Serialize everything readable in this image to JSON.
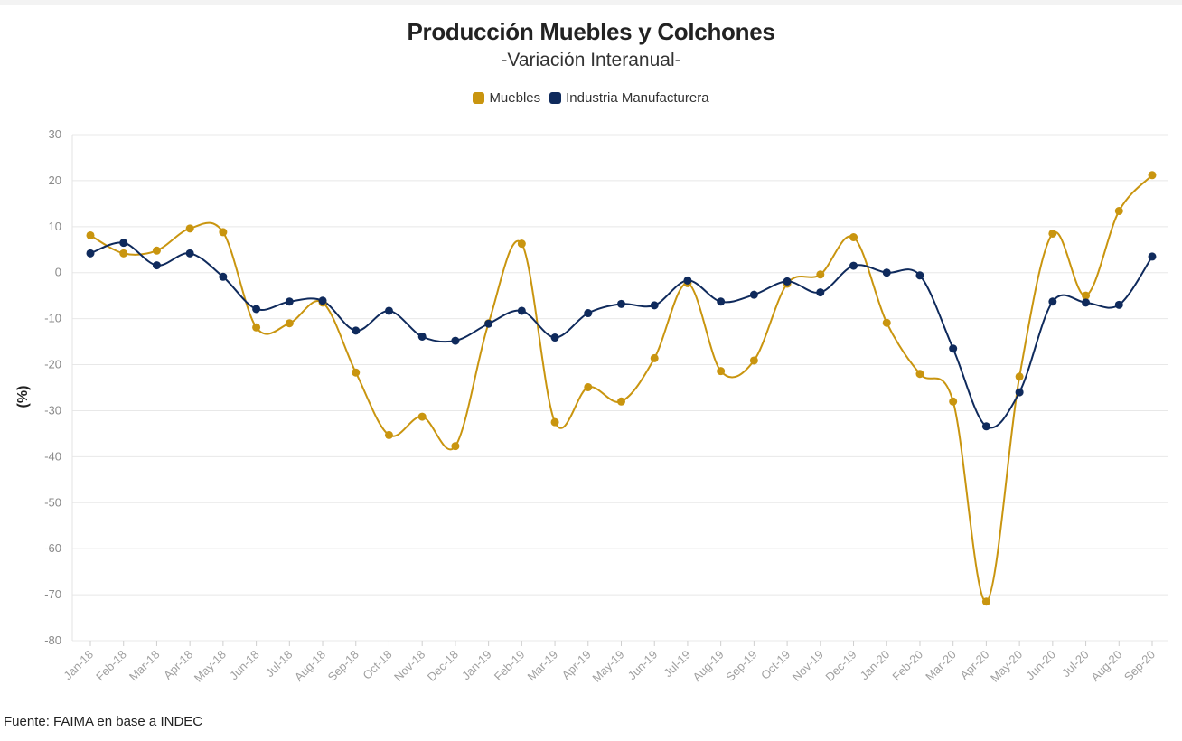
{
  "title": "Producción Muebles y Colchones",
  "subtitle": "-Variación Interanual-",
  "source": "Fuente: FAIMA en base a INDEC",
  "chart_data": {
    "type": "line",
    "title": "Producción Muebles y Colchones",
    "subtitle": "-Variación Interanual-",
    "ylabel": "(%)",
    "xlabel": "",
    "ylim": [
      -80,
      30
    ],
    "yticks": [
      30,
      20,
      10,
      0,
      -10,
      -20,
      -30,
      -40,
      -50,
      -60,
      -70,
      -80
    ],
    "grid": true,
    "legend_position": "top-center",
    "categories": [
      "Jan-18",
      "Feb-18",
      "Mar-18",
      "Apr-18",
      "May-18",
      "Jun-18",
      "Jul-18",
      "Aug-18",
      "Sep-18",
      "Oct-18",
      "Nov-18",
      "Dec-18",
      "Jan-19",
      "Feb-19",
      "Mar-19",
      "Apr-19",
      "May-19",
      "Jun-19",
      "Jul-19",
      "Aug-19",
      "Sep-19",
      "Oct-19",
      "Nov-19",
      "Dec-19",
      "Jan-20",
      "Feb-20",
      "Mar-20",
      "Apr-20",
      "May-20",
      "Jun-20",
      "Jul-20",
      "Aug-20",
      "Sep-20"
    ],
    "series": [
      {
        "name": "Muebles",
        "color": "#c9950f",
        "values": [
          8.1,
          4.2,
          4.8,
          9.6,
          8.8,
          -11.9,
          -11.0,
          -6.5,
          -21.7,
          -35.3,
          -31.3,
          -37.7,
          -11.0,
          6.3,
          -32.5,
          -24.9,
          -28.0,
          -18.6,
          -2.3,
          -21.4,
          -19.1,
          -2.4,
          -0.4,
          7.7,
          -10.9,
          -22.0,
          -28.0,
          -71.5,
          -22.6,
          8.5,
          -5.0,
          13.4,
          21.2
        ]
      },
      {
        "name": "Industria Manufacturera",
        "color": "#0f2a5c",
        "values": [
          4.2,
          6.5,
          1.6,
          4.2,
          -0.9,
          -7.9,
          -6.3,
          -6.1,
          -12.6,
          -8.3,
          -13.9,
          -14.8,
          -11.1,
          -8.3,
          -14.1,
          -8.8,
          -6.8,
          -7.1,
          -1.7,
          -6.3,
          -4.8,
          -1.9,
          -4.3,
          1.5,
          0.0,
          -0.6,
          -16.5,
          -33.4,
          -26.0,
          -6.3,
          -6.5,
          -7.0,
          3.5
        ]
      }
    ]
  }
}
